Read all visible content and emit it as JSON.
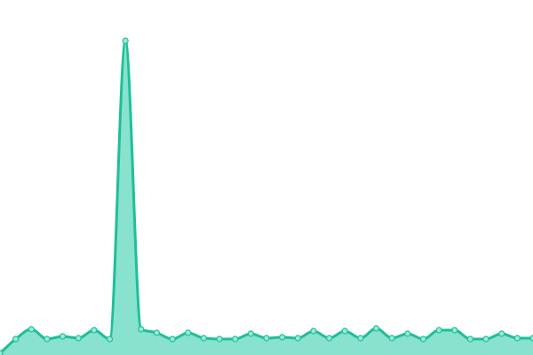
{
  "chart_data": {
    "type": "area",
    "values": [
      0.5,
      4.5,
      7.25,
      4.5,
      5.25,
      4.75,
      7,
      4.5,
      88.5,
      7.25,
      6.25,
      4.5,
      6.25,
      4.75,
      4.5,
      4.5,
      6,
      4.75,
      5,
      4.75,
      6.75,
      4.75,
      6.75,
      4.75,
      7.5,
      4.75,
      6,
      4.5,
      7,
      7,
      4.5,
      4.5,
      6,
      4.75,
      4.75
    ],
    "ylim": [
      0,
      100
    ],
    "color": "#1fbf98",
    "fill": "#88e2cd",
    "marker_fill": "#9be8d5"
  }
}
